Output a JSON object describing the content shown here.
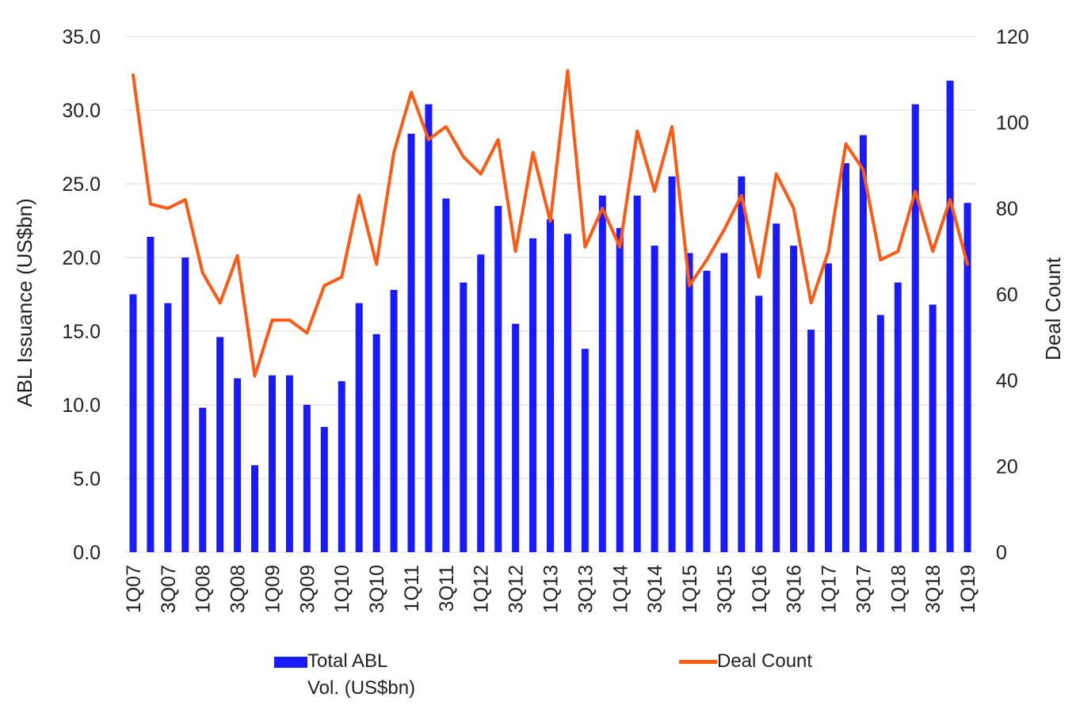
{
  "chart_data": {
    "type": "bar+line",
    "categories": [
      "1Q07",
      "2Q07",
      "3Q07",
      "4Q07",
      "1Q08",
      "2Q08",
      "3Q08",
      "4Q08",
      "1Q09",
      "2Q09",
      "3Q09",
      "4Q09",
      "1Q10",
      "2Q10",
      "3Q10",
      "4Q10",
      "1Q11",
      "2Q11",
      "3Q11",
      "4Q11",
      "1Q12",
      "2Q12",
      "3Q12",
      "4Q12",
      "1Q13",
      "2Q13",
      "3Q13",
      "4Q13",
      "1Q14",
      "2Q14",
      "3Q14",
      "4Q14",
      "1Q15",
      "2Q15",
      "3Q15",
      "4Q15",
      "1Q16",
      "2Q16",
      "3Q16",
      "4Q16",
      "1Q17",
      "2Q17",
      "3Q17",
      "4Q17",
      "1Q18",
      "2Q18",
      "3Q18",
      "4Q18",
      "1Q19"
    ],
    "x_tick_labels": [
      "1Q07",
      "3Q07",
      "1Q08",
      "3Q08",
      "1Q09",
      "3Q09",
      "1Q10",
      "3Q10",
      "1Q11",
      "3Q11",
      "1Q12",
      "3Q12",
      "1Q13",
      "3Q13",
      "1Q14",
      "3Q14",
      "1Q15",
      "3Q15",
      "1Q16",
      "3Q16",
      "1Q17",
      "3Q17",
      "1Q18",
      "3Q18",
      "1Q19"
    ],
    "series": [
      {
        "name": "Total ABL Vol. (US$bn)",
        "legend_line1": "Total ABL",
        "legend_line2": "Vol. (US$bn)",
        "type": "bar",
        "axis": "left",
        "color": "#1a1aff",
        "values": [
          17.5,
          21.4,
          16.9,
          20.0,
          9.8,
          14.6,
          11.8,
          5.9,
          12.0,
          12.0,
          10.0,
          8.5,
          11.6,
          16.9,
          14.8,
          17.8,
          28.4,
          30.4,
          24.0,
          18.3,
          20.2,
          23.5,
          15.5,
          21.3,
          22.6,
          21.6,
          13.8,
          24.2,
          22.0,
          24.2,
          20.8,
          25.5,
          20.3,
          19.1,
          20.3,
          25.5,
          17.4,
          22.3,
          20.8,
          15.1,
          19.6,
          26.4,
          28.3,
          16.1,
          18.3,
          30.4,
          16.8,
          32.0,
          23.7
        ]
      },
      {
        "name": "Deal Count",
        "type": "line",
        "axis": "right",
        "color": "#ff5a14",
        "values": [
          111,
          81,
          80,
          82,
          65,
          58,
          69,
          41,
          54,
          54,
          51,
          62,
          64,
          83,
          67,
          93,
          107,
          96,
          99,
          92,
          88,
          96,
          70,
          93,
          77,
          112,
          71,
          80,
          71,
          98,
          84,
          99,
          62,
          68,
          75,
          83,
          64,
          88,
          80,
          58,
          70,
          95,
          89,
          68,
          70,
          84,
          70,
          82,
          67
        ]
      }
    ],
    "ylabel_left": "ABL Issuance (US$bn)",
    "ylabel_right": "Deal Count",
    "ylim_left": [
      0,
      35
    ],
    "ylim_right": [
      0,
      120
    ],
    "yticks_left": [
      "0.0",
      "5.0",
      "10.0",
      "15.0",
      "20.0",
      "25.0",
      "30.0",
      "35.0"
    ],
    "yticks_right": [
      "0",
      "20",
      "40",
      "60",
      "80",
      "100",
      "120"
    ],
    "grid": true,
    "legend": "bottom"
  }
}
